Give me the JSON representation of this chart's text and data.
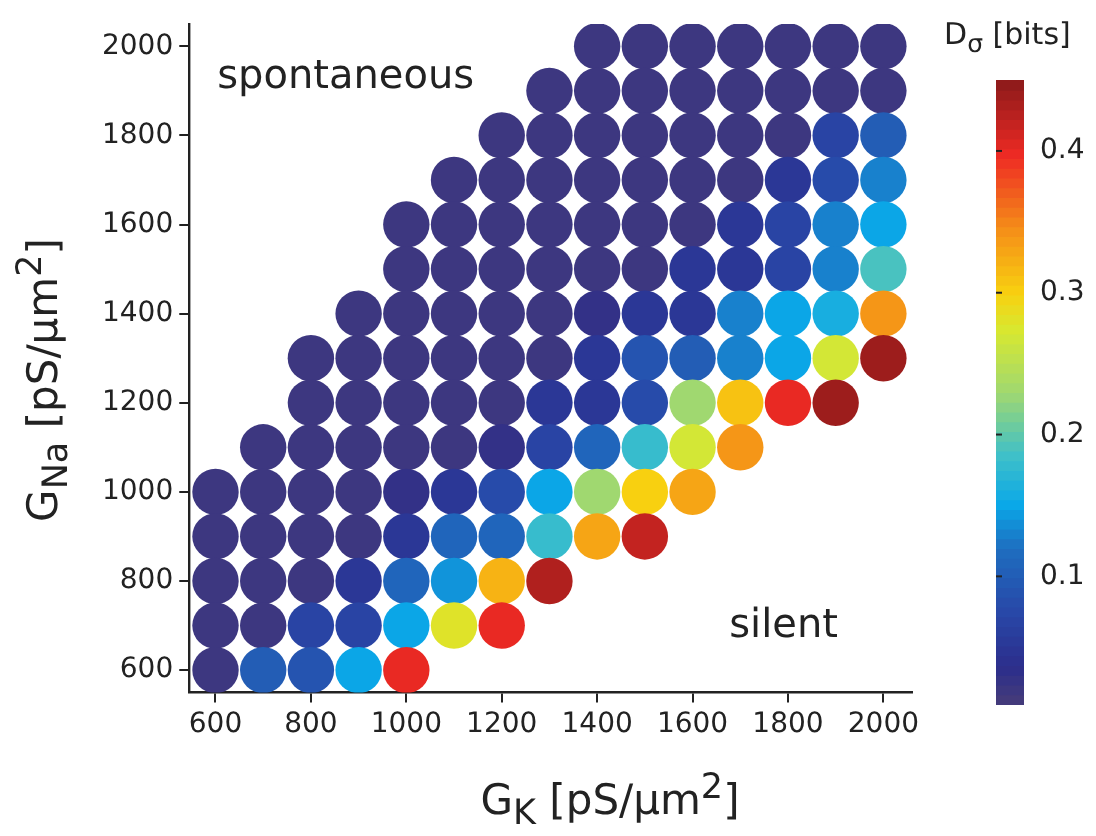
{
  "chart_data": {
    "type": "scatter",
    "xlabel": "G$_{K}$ [pS/μm$^{2}$]",
    "ylabel": "G$_{Na}$ [pS/μm$^{2}$]",
    "clabel": "D$_{σ}$ [bits]",
    "annotations": [
      "spontaneous",
      "silent"
    ],
    "marker": "circle",
    "grid": false,
    "legend": false,
    "xlim": [
      545,
      2060
    ],
    "ylim": [
      550,
      2050
    ],
    "xticks": [
      600,
      800,
      1000,
      1200,
      1400,
      1600,
      1800,
      2000
    ],
    "yticks": [
      600,
      800,
      1000,
      1200,
      1400,
      1600,
      1800,
      2000
    ],
    "clim": [
      0.01,
      0.45
    ],
    "cticks": [
      0.1,
      0.2,
      0.3,
      0.4
    ],
    "x": [
      1400,
      1500,
      1600,
      1700,
      1800,
      1900,
      2000,
      1300,
      1400,
      1500,
      1600,
      1700,
      1800,
      1900,
      2000,
      1200,
      1300,
      1400,
      1500,
      1600,
      1700,
      1800,
      1900,
      2000,
      1100,
      1200,
      1300,
      1400,
      1500,
      1600,
      1700,
      1800,
      1900,
      2000,
      1000,
      1100,
      1200,
      1300,
      1400,
      1500,
      1600,
      1700,
      1800,
      1900,
      2000,
      1000,
      1100,
      1200,
      1300,
      1400,
      1500,
      1600,
      1700,
      1800,
      1900,
      2000,
      900,
      1000,
      1100,
      1200,
      1300,
      1400,
      1500,
      1600,
      1700,
      1800,
      1900,
      2000,
      800,
      900,
      1000,
      1100,
      1200,
      1300,
      1400,
      1500,
      1600,
      1700,
      1800,
      1900,
      2000,
      800,
      900,
      1000,
      1100,
      1200,
      1300,
      1400,
      1500,
      1600,
      1700,
      1800,
      1900,
      700,
      800,
      900,
      1000,
      1100,
      1200,
      1300,
      1400,
      1500,
      1600,
      1700,
      600,
      700,
      800,
      900,
      1000,
      1100,
      1200,
      1300,
      1400,
      1500,
      1600,
      600,
      700,
      800,
      900,
      1000,
      1100,
      1200,
      1300,
      1400,
      1500,
      600,
      700,
      800,
      900,
      1000,
      1100,
      1200,
      1300,
      600,
      700,
      800,
      900,
      1000,
      1100,
      1200,
      600,
      700,
      800,
      900,
      1000
    ],
    "values": [
      2000,
      2000,
      2000,
      2000,
      2000,
      2000,
      2000,
      1900,
      1900,
      1900,
      1900,
      1900,
      1900,
      1900,
      1900,
      1800,
      1800,
      1800,
      1800,
      1800,
      1800,
      1800,
      1800,
      1800,
      1700,
      1700,
      1700,
      1700,
      1700,
      1700,
      1700,
      1700,
      1700,
      1700,
      1600,
      1600,
      1600,
      1600,
      1600,
      1600,
      1600,
      1600,
      1600,
      1600,
      1600,
      1500,
      1500,
      1500,
      1500,
      1500,
      1500,
      1500,
      1500,
      1500,
      1500,
      1500,
      1400,
      1400,
      1400,
      1400,
      1400,
      1400,
      1400,
      1400,
      1400,
      1400,
      1400,
      1400,
      1300,
      1300,
      1300,
      1300,
      1300,
      1300,
      1300,
      1300,
      1300,
      1300,
      1300,
      1300,
      1300,
      1200,
      1200,
      1200,
      1200,
      1200,
      1200,
      1200,
      1200,
      1200,
      1200,
      1200,
      1200,
      1100,
      1100,
      1100,
      1100,
      1100,
      1100,
      1100,
      1100,
      1100,
      1100,
      1100,
      1000,
      1000,
      1000,
      1000,
      1000,
      1000,
      1000,
      1000,
      1000,
      1000,
      1000,
      900,
      900,
      900,
      900,
      900,
      900,
      900,
      900,
      900,
      900,
      800,
      800,
      800,
      800,
      800,
      800,
      800,
      800,
      700,
      700,
      700,
      700,
      700,
      700,
      700,
      600,
      600,
      600,
      600,
      600
    ],
    "cvalues": [
      0.02,
      0.02,
      0.02,
      0.02,
      0.02,
      0.02,
      0.02,
      0.02,
      0.02,
      0.02,
      0.02,
      0.02,
      0.02,
      0.02,
      0.02,
      0.02,
      0.02,
      0.02,
      0.02,
      0.02,
      0.02,
      0.02,
      0.07,
      0.1,
      0.02,
      0.02,
      0.02,
      0.02,
      0.02,
      0.02,
      0.02,
      0.05,
      0.08,
      0.13,
      0.02,
      0.02,
      0.02,
      0.02,
      0.02,
      0.02,
      0.02,
      0.05,
      0.07,
      0.13,
      0.15,
      0.02,
      0.02,
      0.02,
      0.02,
      0.02,
      0.02,
      0.05,
      0.05,
      0.07,
      0.13,
      0.19,
      0.02,
      0.02,
      0.02,
      0.02,
      0.02,
      0.03,
      0.05,
      0.05,
      0.13,
      0.15,
      0.16,
      0.34,
      0.02,
      0.02,
      0.02,
      0.02,
      0.02,
      0.02,
      0.05,
      0.09,
      0.1,
      0.13,
      0.15,
      0.27,
      0.44,
      0.02,
      0.02,
      0.02,
      0.02,
      0.02,
      0.05,
      0.05,
      0.08,
      0.23,
      0.31,
      0.4,
      0.44,
      0.02,
      0.02,
      0.02,
      0.02,
      0.02,
      0.03,
      0.07,
      0.11,
      0.18,
      0.27,
      0.34,
      0.02,
      0.02,
      0.02,
      0.02,
      0.03,
      0.05,
      0.08,
      0.15,
      0.23,
      0.3,
      0.33,
      0.02,
      0.02,
      0.02,
      0.02,
      0.05,
      0.11,
      0.11,
      0.18,
      0.33,
      0.42,
      0.02,
      0.02,
      0.02,
      0.05,
      0.11,
      0.14,
      0.32,
      0.43,
      0.02,
      0.02,
      0.07,
      0.07,
      0.15,
      0.28,
      0.4,
      0.02,
      0.1,
      0.09,
      0.15,
      0.4
    ]
  }
}
